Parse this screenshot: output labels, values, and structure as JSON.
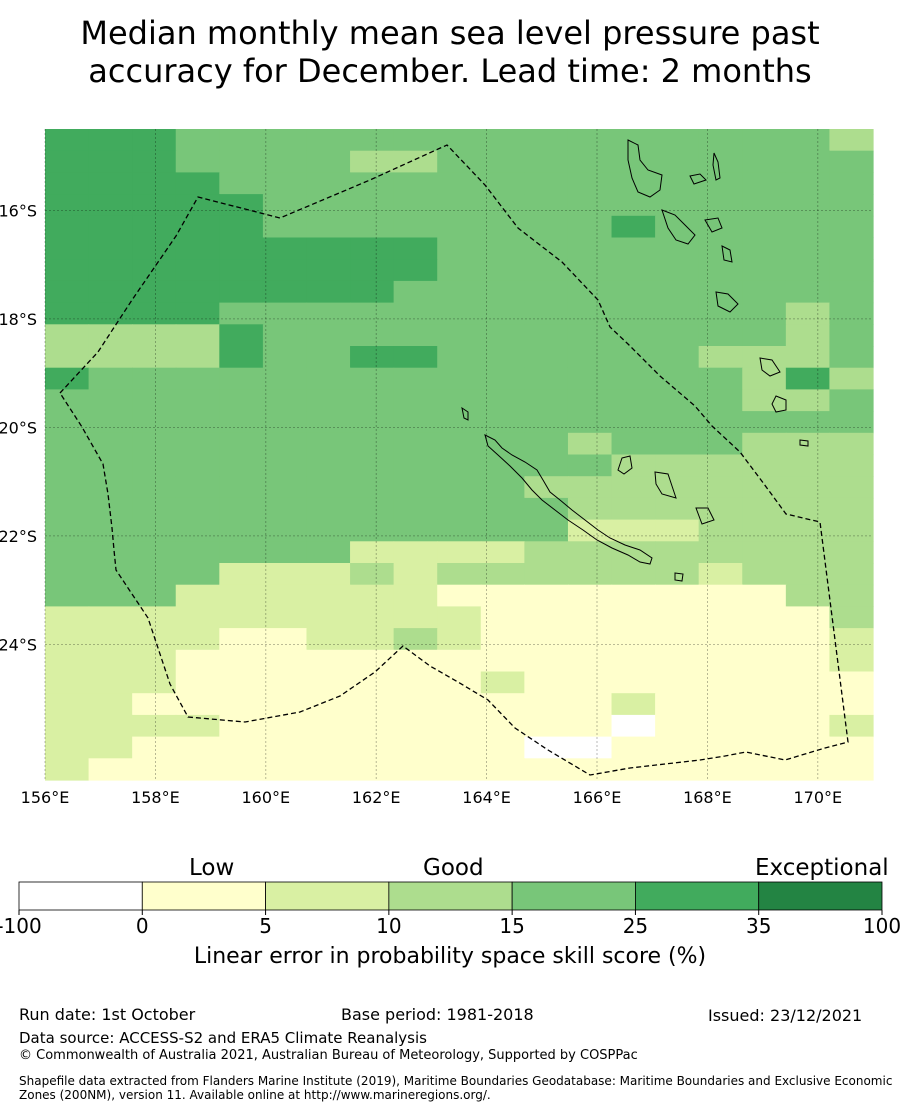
{
  "title_line1": "Median monthly mean sea level pressure past",
  "title_line2": "accuracy for December. Lead time: 2 months",
  "map": {
    "lon_ticks": [
      "156°E",
      "158°E",
      "160°E",
      "162°E",
      "164°E",
      "166°E",
      "168°E",
      "170°E"
    ],
    "lat_ticks": [
      "16°S",
      "18°S",
      "20°S",
      "22°S",
      "24°S"
    ],
    "lon_range": [
      156,
      171
    ],
    "lat_range": [
      -26.5,
      -14.5
    ],
    "grid": true,
    "palette": {
      "w": "#ffffff",
      "y": "#ffffcc",
      "l": "#d9f0a3",
      "m": "#addd8e",
      "g": "#78c679",
      "d": "#41ab5d",
      "x": "#238443"
    },
    "grid_cols_lon_start": 156,
    "grid_rows_lat_start": -14.5,
    "grid_step_deg": 0.833,
    "cells": [
      "dddgggggggggggggggm",
      "dddggggmmgggggggggg",
      "ddddggggggggggggggg",
      "dddddgggggggggggggg",
      "dddddggggggggdggggg",
      "dddddddddgggggggggg",
      "dddddddddgggggggggg",
      "ddddddddggggggggggg",
      "ddddgggggggggggggmg",
      "mmmmdggggggggggggmg",
      "mmmmdggddggggggmmmg",
      "dgggggggggggggggmdm",
      "ggggggggggggggggmmg",
      "ggggggggggggggggggg",
      "ggggggggggggmgggmmm",
      "gggggggggggggmmmmmm",
      "gggggggggggmmmmmmmm",
      "ggggggggggggmmmmmmm",
      "gggggggggggglllmmmm",
      "gggggggllllmmmmmmmm",
      "gggglllmlmmmmmmlmmm",
      "gggllllllyyyyyyyymm",
      "llllllllllyyyyyyyym",
      "llllyyllmlyyyyyyyyl",
      "lllyyyyyyyyyyyyyyyl",
      "lllyyyyyyylyyyyyyyy",
      "llyyyyyyyyyyylyyyyy",
      "llllyyyyyyyyywyyyyl",
      "llyyyyyyyyywwyyyyyy",
      "lyyyyyyyyyyyyyyyyyy"
    ]
  },
  "colorbar": {
    "categories": [
      "Low",
      "Good",
      "Exceptional"
    ],
    "tick_labels": [
      "-100",
      "0",
      "5",
      "10",
      "15",
      "25",
      "35",
      "100"
    ],
    "colors": [
      "#ffffff",
      "#ffffcc",
      "#d9f0a3",
      "#addd8e",
      "#78c679",
      "#41ab5d",
      "#238443"
    ],
    "axis_label": "Linear error in probability space skill score (%)"
  },
  "footer": {
    "run_date": "Run date: 1st October",
    "base_period": "Base period: 1981-2018",
    "issued": "Issued: 23/12/2021",
    "data_source": "Data source: ACCESS-S2 and ERA5 Climate Reanalysis",
    "copyright": "© Commonwealth of Australia 2021, Australian Bureau of Meteorology, Supported by COSPPac",
    "shapefile_line1": "Shapefile data extracted from Flanders Marine Institute (2019), Maritime Boundaries Geodatabase: Maritime Boundaries and Exclusive Economic",
    "shapefile_line2": "Zones (200NM), version 11. Available online at http://www.marineregions.org/."
  }
}
